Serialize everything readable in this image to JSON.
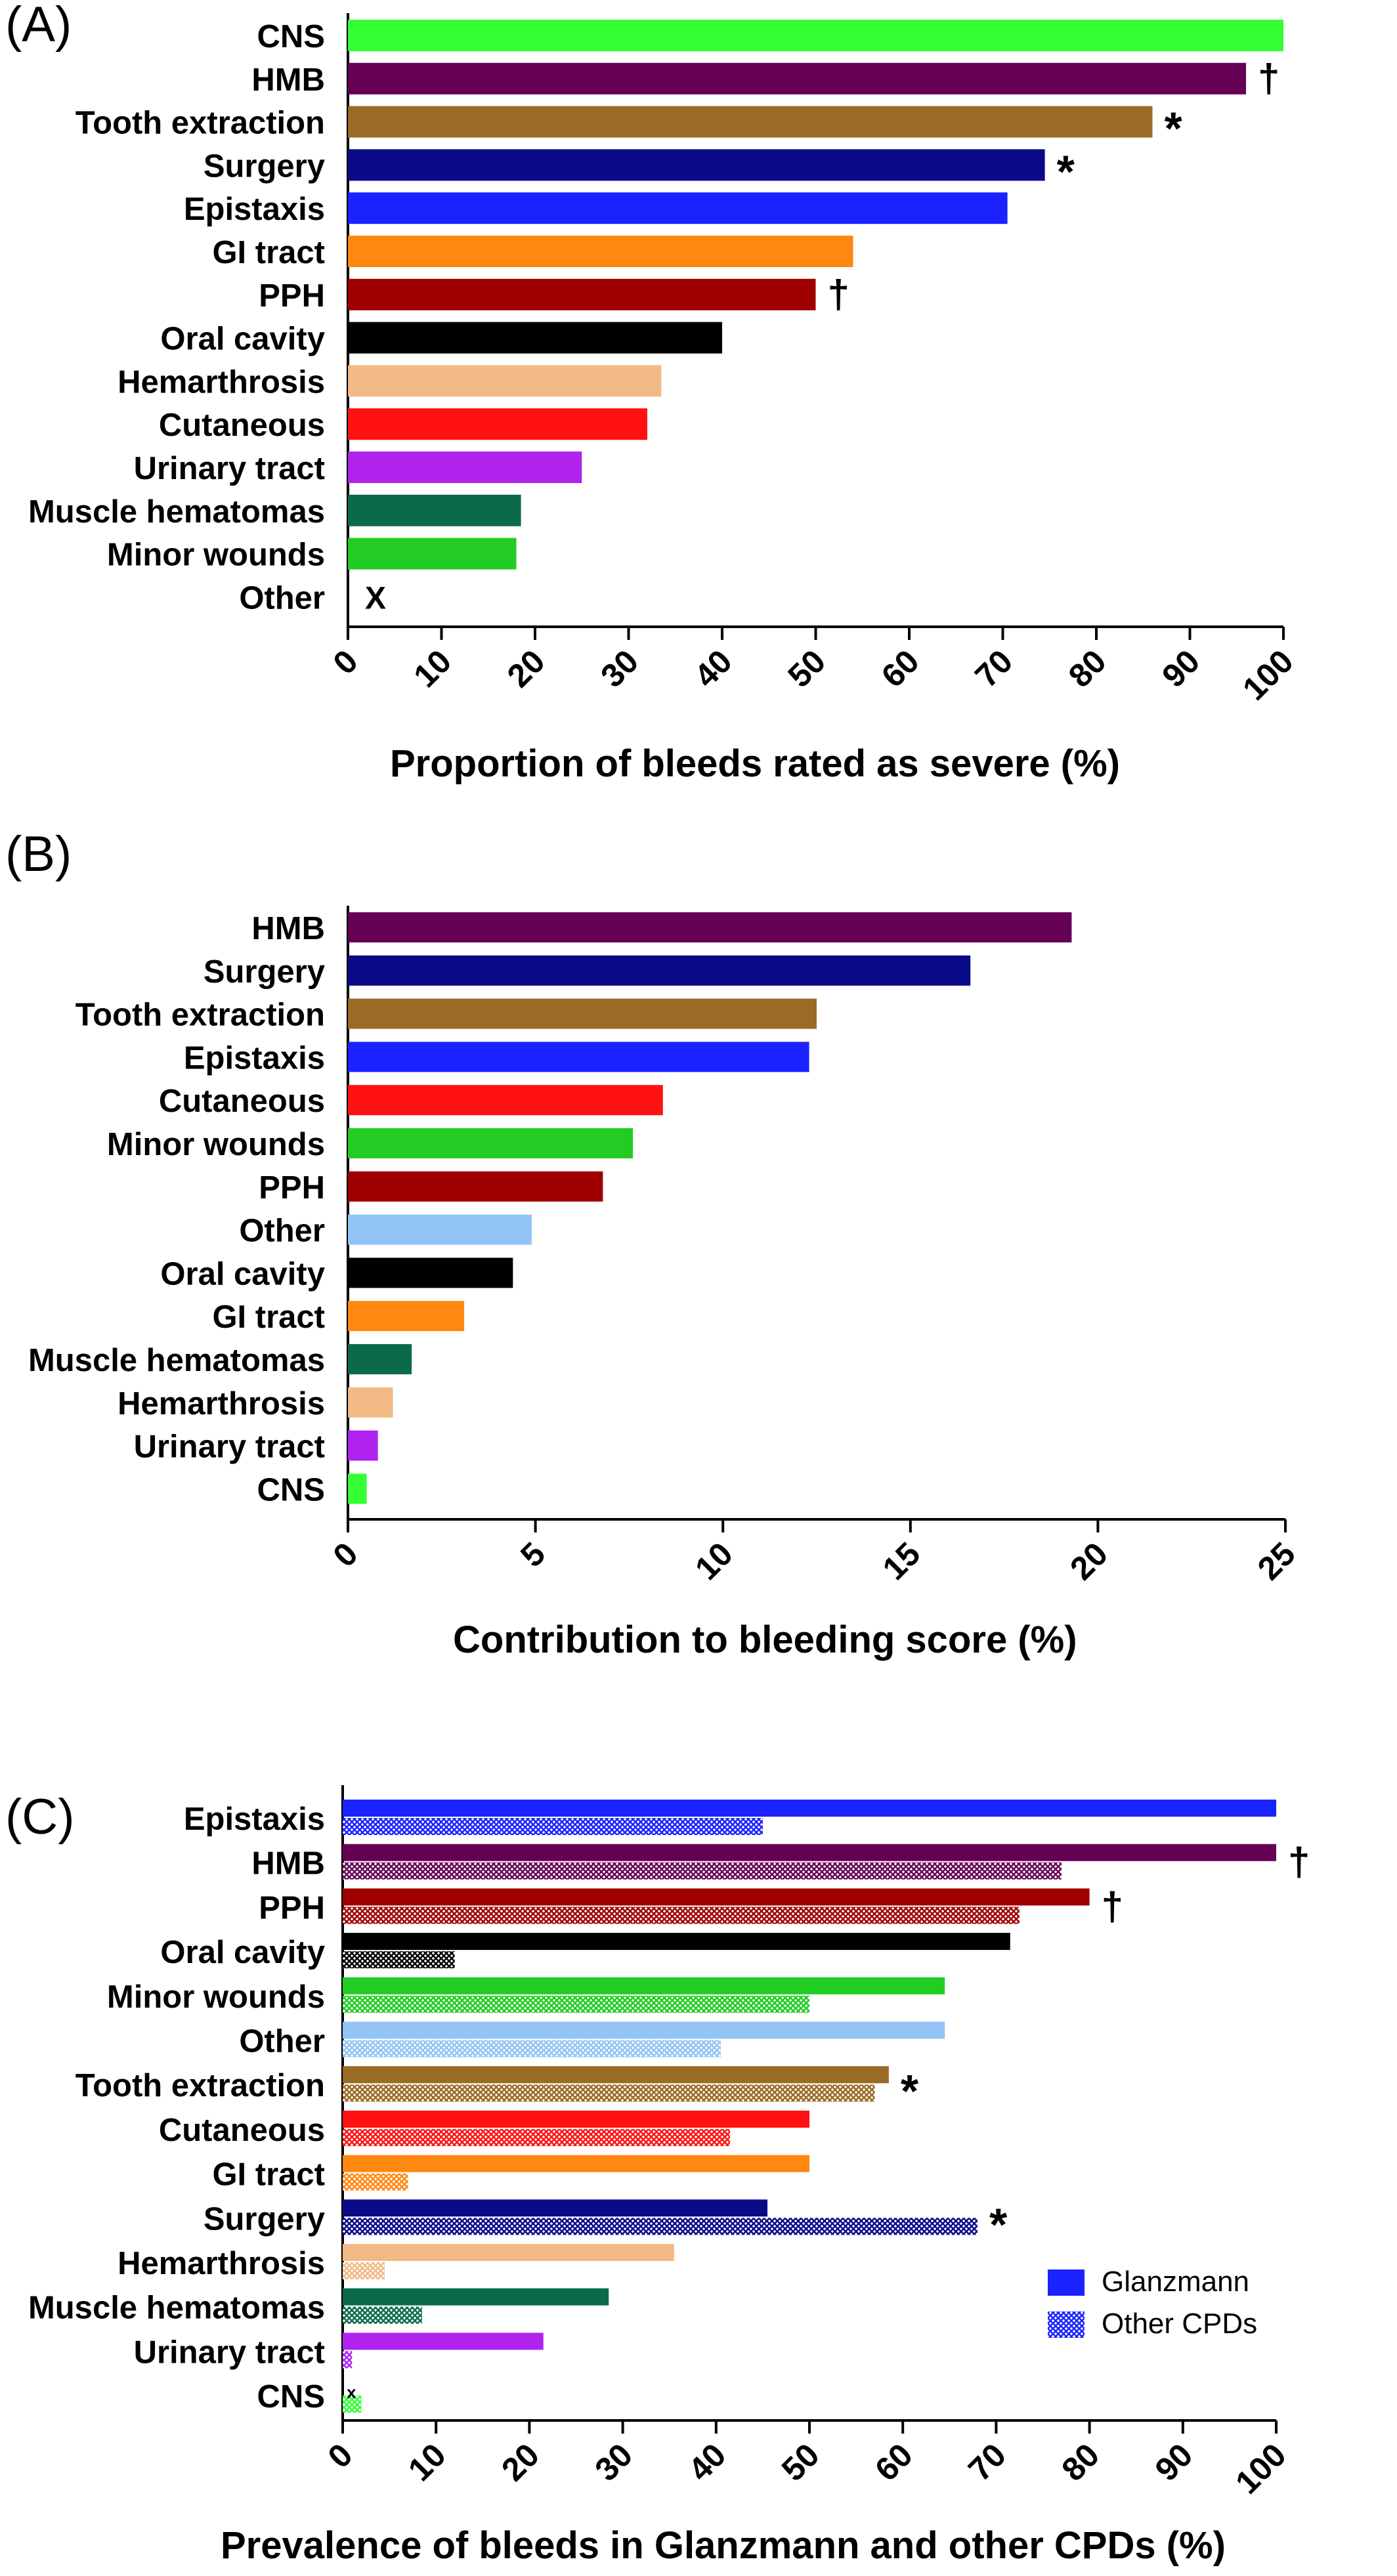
{
  "colors": {
    "CNS": "#33ff33",
    "HMB": "#660055",
    "Tooth extraction": "#9b6a24",
    "Surgery": "#0a0a88",
    "Epistaxis": "#1a22ff",
    "GI tract": "#ff8811",
    "PPH": "#a00000",
    "Oral cavity": "#000000",
    "Hemarthrosis": "#f2b985",
    "Cutaneous": "#ff1111",
    "Urinary tract": "#b022ee",
    "Muscle hematomas": "#0a6a4a",
    "Minor wounds": "#22cc22",
    "Other": "#92c4f5"
  },
  "panels": {
    "A": {
      "label": "(A)",
      "xlabel": "Proportion of bleeds rated as severe (%)"
    },
    "B": {
      "label": "(B)",
      "xlabel": "Contribution to bleeding score (%)"
    },
    "C": {
      "label": "(C)",
      "xlabel": "Prevalence of bleeds in Glanzmann and other CPDs (%)"
    }
  },
  "chart_data": [
    {
      "type": "bar",
      "orientation": "horizontal",
      "title": "",
      "xlabel": "Proportion of bleeds rated as severe (%)",
      "xlim": [
        0,
        100
      ],
      "xticks": [
        "0",
        "10",
        "20",
        "30",
        "40",
        "50",
        "60",
        "70",
        "80",
        "90",
        "100"
      ],
      "categories": [
        "CNS",
        "HMB",
        "Tooth extraction",
        "Surgery",
        "Epistaxis",
        "GI tract",
        "PPH",
        "Oral cavity",
        "Hemarthrosis",
        "Cutaneous",
        "Urinary tract",
        "Muscle hematomas",
        "Minor wounds",
        "Other"
      ],
      "values": [
        100,
        96,
        86,
        74.5,
        70.5,
        54,
        50,
        40,
        33.5,
        32,
        25,
        18.5,
        18,
        0
      ],
      "annotations": [
        "",
        "†",
        "*",
        "*",
        "",
        "",
        "†",
        "",
        "",
        "",
        "",
        "",
        "",
        "X"
      ]
    },
    {
      "type": "bar",
      "orientation": "horizontal",
      "title": "",
      "xlabel": "Contribution to bleeding score (%)",
      "xlim": [
        0,
        25
      ],
      "xticks": [
        "0",
        "5",
        "10",
        "15",
        "20",
        "25"
      ],
      "categories": [
        "HMB",
        "Surgery",
        "Tooth extraction",
        "Epistaxis",
        "Cutaneous",
        "Minor wounds",
        "PPH",
        "Other",
        "Oral cavity",
        "GI tract",
        "Muscle hematomas",
        "Hemarthrosis",
        "Urinary tract",
        "CNS"
      ],
      "values": [
        19.3,
        16.6,
        12.5,
        12.3,
        8.4,
        7.6,
        6.8,
        4.9,
        4.4,
        3.1,
        1.7,
        1.2,
        0.8,
        0.5
      ]
    },
    {
      "type": "bar",
      "orientation": "horizontal",
      "title": "",
      "xlabel": "Prevalence of bleeds in Glanzmann and other CPDs (%)",
      "xlim": [
        0,
        100
      ],
      "xticks": [
        "0",
        "10",
        "20",
        "30",
        "40",
        "50",
        "60",
        "70",
        "80",
        "90",
        "100"
      ],
      "legend_position": "bottom-right",
      "categories": [
        "Epistaxis",
        "HMB",
        "PPH",
        "Oral cavity",
        "Minor wounds",
        "Other",
        "Tooth extraction",
        "Cutaneous",
        "GI tract",
        "Surgery",
        "Hemarthrosis",
        "Muscle hematomas",
        "Urinary tract",
        "CNS"
      ],
      "series": [
        {
          "name": "Glanzmann",
          "values": [
            100,
            100,
            80,
            71.5,
            64.5,
            64.5,
            58.5,
            50,
            50,
            45.5,
            35.5,
            28.5,
            21.5,
            0
          ]
        },
        {
          "name": "Other CPDs",
          "values": [
            45,
            77,
            72.5,
            12,
            50,
            40.5,
            57,
            41.5,
            7,
            68,
            4.5,
            8.5,
            1,
            2
          ]
        }
      ],
      "annotations": [
        "",
        "†",
        "†",
        "",
        "",
        "",
        "*",
        "",
        "",
        "*",
        "",
        "",
        "",
        "x"
      ]
    }
  ]
}
